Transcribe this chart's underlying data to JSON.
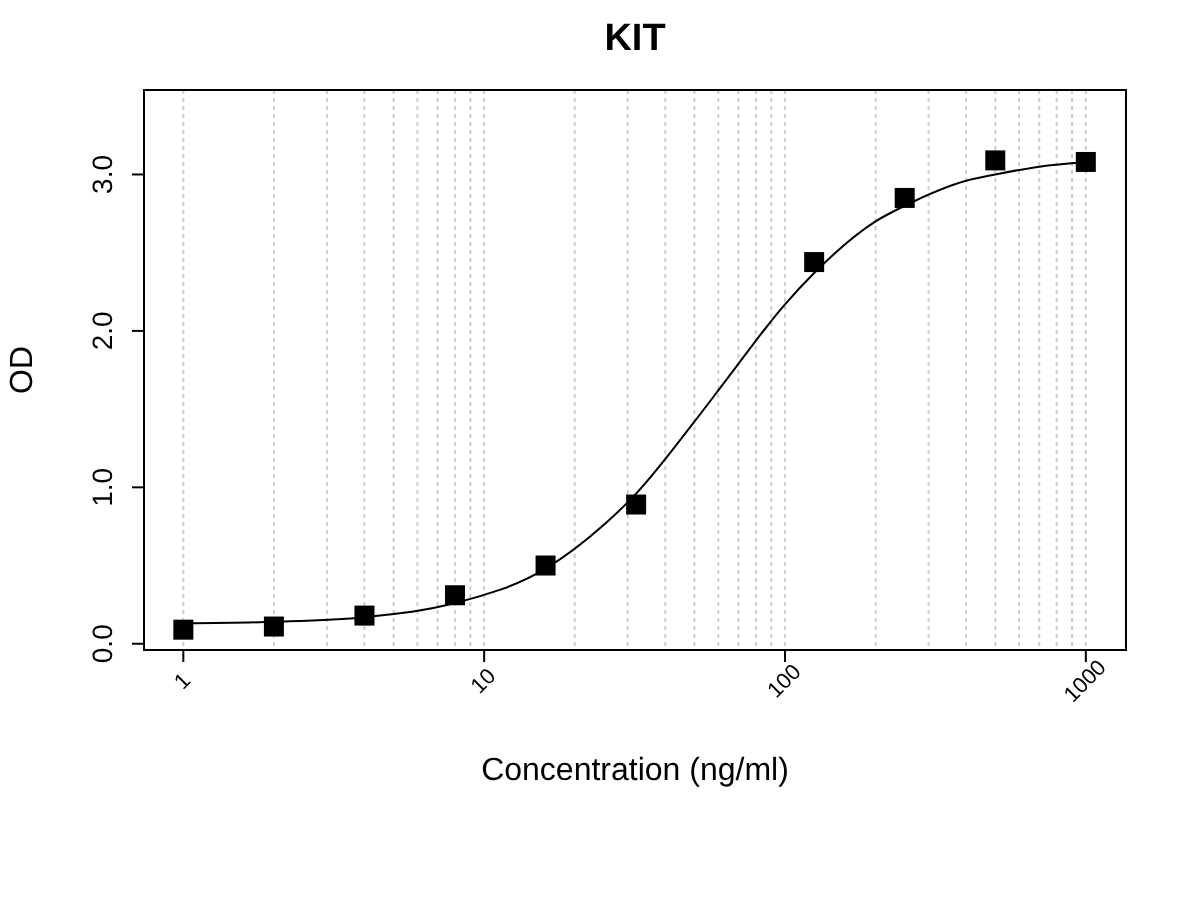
{
  "chart_data": {
    "type": "scatter",
    "title": "KIT",
    "xlabel": "Concentration (ng/ml)",
    "ylabel": "OD",
    "log": "x",
    "grid": "x",
    "xlim": [
      0.74,
      1360
    ],
    "ylim": [
      -0.04,
      3.54
    ],
    "xticks": [
      1,
      {
        "value": 2,
        "label": null
      },
      {
        "value": 3,
        "label": null
      },
      {
        "value": 4,
        "label": null
      },
      {
        "value": 5,
        "label": null
      },
      {
        "value": 6,
        "label": null
      },
      {
        "value": 7,
        "label": null
      },
      {
        "value": 8,
        "label": null
      },
      {
        "value": 9,
        "label": null
      },
      10,
      {
        "value": 20,
        "label": null
      },
      {
        "value": 30,
        "label": null
      },
      {
        "value": 40,
        "label": null
      },
      {
        "value": 50,
        "label": null
      },
      {
        "value": 60,
        "label": null
      },
      {
        "value": 70,
        "label": null
      },
      {
        "value": 80,
        "label": null
      },
      {
        "value": 90,
        "label": null
      },
      100,
      {
        "value": 200,
        "label": null
      },
      {
        "value": 300,
        "label": null
      },
      {
        "value": 400,
        "label": null
      },
      {
        "value": 500,
        "label": null
      },
      {
        "value": 600,
        "label": null
      },
      {
        "value": 700,
        "label": null
      },
      {
        "value": 800,
        "label": null
      },
      {
        "value": 900,
        "label": null
      },
      1000
    ],
    "yticks": [
      {
        "value": 0,
        "label": "0.0"
      },
      {
        "value": 1,
        "label": "1.0"
      },
      {
        "value": 2,
        "label": "2.0"
      },
      {
        "value": 3,
        "label": "3.0"
      }
    ],
    "series": [
      {
        "marker": "square",
        "color": "#000000",
        "x": [
          1,
          2,
          4,
          8,
          16,
          32,
          125,
          250,
          500,
          1000
        ],
        "values": [
          0.09,
          0.11,
          0.18,
          0.31,
          0.5,
          0.89,
          2.44,
          2.85,
          3.09,
          3.08
        ]
      },
      {
        "type": "line",
        "marker": "none",
        "line_style": "solid",
        "color": "#000000",
        "x": [
          1,
          2,
          4,
          8,
          16,
          25,
          32,
          50,
          64,
          100,
          125,
          200,
          250,
          400,
          500,
          700,
          1000
        ],
        "values": [
          0.13,
          0.14,
          0.17,
          0.26,
          0.48,
          0.76,
          0.96,
          1.42,
          1.69,
          2.17,
          2.37,
          2.7,
          2.8,
          2.96,
          3.0,
          3.05,
          3.08
        ]
      }
    ]
  }
}
